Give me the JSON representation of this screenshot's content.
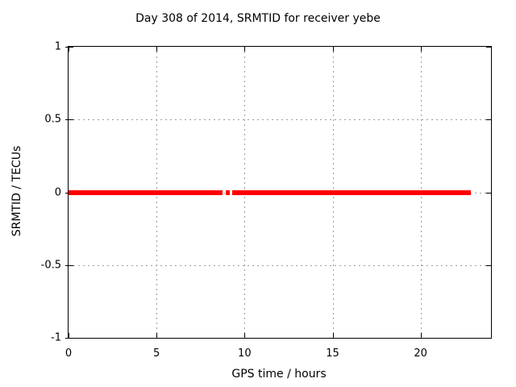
{
  "title": "Day 308 of 2014, SRMTID for receiver yebe",
  "colors": {
    "background": "#ffffff",
    "axis": "#000000",
    "grid": "#9c9c9c",
    "text": "#000000",
    "series": "#ff0000"
  },
  "chart_data": {
    "type": "scatter",
    "title": "Day 308 of 2014, SRMTID for receiver yebe",
    "xlabel": "GPS time / hours",
    "ylabel": "SRMTID / TECUs",
    "xlim": [
      0,
      24
    ],
    "ylim": [
      -1,
      1
    ],
    "grid": true,
    "legend": "none",
    "xticks": [
      {
        "value": 0,
        "label": "0"
      },
      {
        "value": 5,
        "label": "5"
      },
      {
        "value": 10,
        "label": "10"
      },
      {
        "value": 15,
        "label": "15"
      },
      {
        "value": 20,
        "label": "20"
      }
    ],
    "yticks": [
      {
        "value": -1,
        "label": "-1"
      },
      {
        "value": -0.5,
        "label": "-0.5"
      },
      {
        "value": 0,
        "label": "0"
      },
      {
        "value": 0.5,
        "label": "0.5"
      },
      {
        "value": 1,
        "label": "1"
      }
    ],
    "series": [
      {
        "name": "SRMTID",
        "color": "#ff0000",
        "y_constant": 0,
        "marker_px": 6,
        "x_segments": [
          [
            0.0,
            8.75
          ],
          [
            8.95,
            9.14
          ],
          [
            9.3,
            22.86
          ]
        ]
      }
    ]
  }
}
